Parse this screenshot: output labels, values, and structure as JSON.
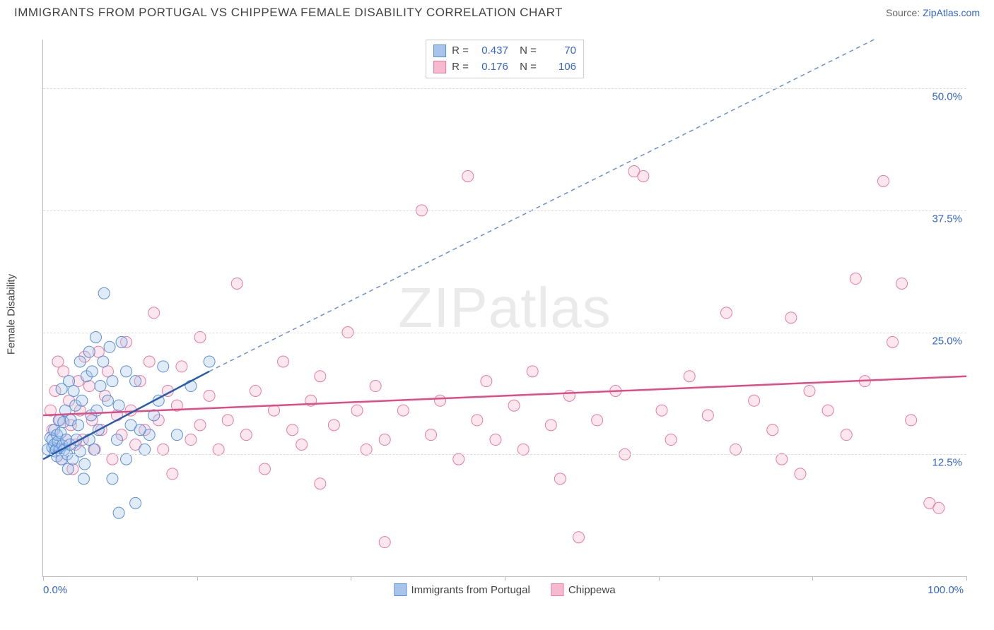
{
  "title": "IMMIGRANTS FROM PORTUGAL VS CHIPPEWA FEMALE DISABILITY CORRELATION CHART",
  "source_label": "Source:",
  "source_value": "ZipAtlas.com",
  "watermark": "ZIPatlas",
  "ylabel": "Female Disability",
  "chart": {
    "type": "scatter",
    "xlim": [
      0,
      100
    ],
    "ylim": [
      0,
      55
    ],
    "x_tick_positions": [
      0,
      16.67,
      33.33,
      50,
      66.67,
      83.33,
      100
    ],
    "x_label_min": "0.0%",
    "x_label_max": "100.0%",
    "y_grid": [
      {
        "value": 12.5,
        "label": "12.5%"
      },
      {
        "value": 25.0,
        "label": "25.0%"
      },
      {
        "value": 37.5,
        "label": "37.5%"
      },
      {
        "value": 50.0,
        "label": "50.0%"
      }
    ],
    "background_color": "#ffffff",
    "grid_color": "#dddddd",
    "axis_color": "#bbbbbb",
    "marker_radius": 8,
    "marker_fill_opacity": 0.35,
    "series": [
      {
        "name": "Immigrants from Portugal",
        "color_stroke": "#5b8fd6",
        "color_fill": "#a7c5ec",
        "trend_color": "#2a5caa",
        "trend_dash_color": "#6a8fd6",
        "R": "0.437",
        "N": "70",
        "trend_solid": {
          "x1": 0,
          "y1": 12.0,
          "x2": 18,
          "y2": 21.0
        },
        "trend_dash": {
          "x1": 18,
          "y1": 21.0,
          "x2": 90,
          "y2": 55.0
        },
        "points": [
          [
            0.5,
            13.0
          ],
          [
            0.8,
            14.2
          ],
          [
            1.0,
            13.2
          ],
          [
            1.0,
            14.0
          ],
          [
            1.2,
            13.5
          ],
          [
            1.2,
            15.0
          ],
          [
            1.3,
            12.8
          ],
          [
            1.4,
            13.0
          ],
          [
            1.5,
            14.5
          ],
          [
            1.5,
            12.3
          ],
          [
            1.6,
            13.8
          ],
          [
            1.7,
            16.0
          ],
          [
            1.8,
            13.0
          ],
          [
            1.9,
            14.7
          ],
          [
            2.0,
            12.0
          ],
          [
            2.0,
            19.2
          ],
          [
            2.1,
            13.4
          ],
          [
            2.2,
            15.8
          ],
          [
            2.3,
            13.0
          ],
          [
            2.4,
            17.0
          ],
          [
            2.5,
            14.0
          ],
          [
            2.6,
            12.5
          ],
          [
            2.7,
            11.0
          ],
          [
            2.8,
            20.0
          ],
          [
            2.9,
            13.5
          ],
          [
            3.0,
            16.0
          ],
          [
            3.2,
            12.0
          ],
          [
            3.3,
            19.0
          ],
          [
            3.5,
            17.5
          ],
          [
            3.6,
            14.0
          ],
          [
            3.8,
            15.5
          ],
          [
            4.0,
            22.0
          ],
          [
            4.0,
            12.8
          ],
          [
            4.2,
            18.0
          ],
          [
            4.4,
            10.0
          ],
          [
            4.5,
            11.5
          ],
          [
            4.7,
            20.5
          ],
          [
            5.0,
            23.0
          ],
          [
            5.0,
            14.0
          ],
          [
            5.2,
            16.5
          ],
          [
            5.3,
            21.0
          ],
          [
            5.5,
            13.0
          ],
          [
            5.7,
            24.5
          ],
          [
            5.8,
            17.0
          ],
          [
            6.0,
            15.0
          ],
          [
            6.2,
            19.5
          ],
          [
            6.5,
            22.0
          ],
          [
            6.6,
            29.0
          ],
          [
            7.0,
            18.0
          ],
          [
            7.2,
            23.5
          ],
          [
            7.5,
            20.0
          ],
          [
            7.5,
            10.0
          ],
          [
            8.0,
            14.0
          ],
          [
            8.2,
            6.5
          ],
          [
            8.2,
            17.5
          ],
          [
            8.5,
            24.0
          ],
          [
            9.0,
            21.0
          ],
          [
            9.0,
            12.0
          ],
          [
            9.5,
            15.5
          ],
          [
            10.0,
            7.5
          ],
          [
            10.0,
            20.0
          ],
          [
            10.5,
            15.0
          ],
          [
            11.0,
            13.0
          ],
          [
            11.5,
            14.5
          ],
          [
            12.0,
            16.5
          ],
          [
            12.5,
            18.0
          ],
          [
            13.0,
            21.5
          ],
          [
            14.5,
            14.5
          ],
          [
            16.0,
            19.5
          ],
          [
            18.0,
            22.0
          ]
        ]
      },
      {
        "name": "Chippewa",
        "color_stroke": "#e77ba0",
        "color_fill": "#f6b9cd",
        "trend_color": "#e04d86",
        "R": "0.176",
        "N": "106",
        "trend_solid": {
          "x1": 0,
          "y1": 16.5,
          "x2": 100,
          "y2": 20.5
        },
        "points": [
          [
            0.8,
            17.0
          ],
          [
            1.0,
            15.0
          ],
          [
            1.3,
            19.0
          ],
          [
            1.6,
            22.0
          ],
          [
            1.8,
            16.0
          ],
          [
            2.0,
            12.0
          ],
          [
            2.2,
            21.0
          ],
          [
            2.5,
            14.0
          ],
          [
            2.8,
            18.0
          ],
          [
            3.0,
            15.5
          ],
          [
            3.2,
            11.0
          ],
          [
            3.5,
            13.5
          ],
          [
            3.8,
            20.0
          ],
          [
            4.0,
            17.0
          ],
          [
            4.3,
            14.0
          ],
          [
            4.5,
            22.5
          ],
          [
            5.0,
            19.5
          ],
          [
            5.3,
            16.0
          ],
          [
            5.6,
            13.0
          ],
          [
            6.0,
            23.0
          ],
          [
            6.3,
            15.0
          ],
          [
            6.7,
            18.5
          ],
          [
            7.0,
            21.0
          ],
          [
            7.5,
            12.0
          ],
          [
            8.0,
            16.5
          ],
          [
            8.5,
            14.5
          ],
          [
            9.0,
            24.0
          ],
          [
            9.5,
            17.0
          ],
          [
            10.0,
            13.5
          ],
          [
            10.5,
            20.0
          ],
          [
            11.0,
            15.0
          ],
          [
            11.5,
            22.0
          ],
          [
            12.0,
            27.0
          ],
          [
            12.5,
            16.0
          ],
          [
            13.0,
            13.0
          ],
          [
            13.5,
            19.0
          ],
          [
            14.0,
            10.5
          ],
          [
            14.5,
            17.5
          ],
          [
            15.0,
            21.5
          ],
          [
            16.0,
            14.0
          ],
          [
            17.0,
            24.5
          ],
          [
            17.0,
            15.5
          ],
          [
            18.0,
            18.5
          ],
          [
            19.0,
            13.0
          ],
          [
            20.0,
            16.0
          ],
          [
            21.0,
            30.0
          ],
          [
            22.0,
            14.5
          ],
          [
            23.0,
            19.0
          ],
          [
            24.0,
            11.0
          ],
          [
            25.0,
            17.0
          ],
          [
            26.0,
            22.0
          ],
          [
            27.0,
            15.0
          ],
          [
            28.0,
            13.5
          ],
          [
            29.0,
            18.0
          ],
          [
            30.0,
            20.5
          ],
          [
            30.0,
            9.5
          ],
          [
            31.5,
            15.5
          ],
          [
            33.0,
            25.0
          ],
          [
            34.0,
            17.0
          ],
          [
            35.0,
            13.0
          ],
          [
            36.0,
            19.5
          ],
          [
            37.0,
            14.0
          ],
          [
            37.0,
            3.5
          ],
          [
            39.0,
            17.0
          ],
          [
            41.0,
            37.5
          ],
          [
            42.0,
            14.5
          ],
          [
            43.0,
            18.0
          ],
          [
            45.0,
            12.0
          ],
          [
            46.0,
            41.0
          ],
          [
            47.0,
            16.0
          ],
          [
            48.0,
            20.0
          ],
          [
            49.0,
            14.0
          ],
          [
            51.0,
            17.5
          ],
          [
            52.0,
            13.0
          ],
          [
            53.0,
            21.0
          ],
          [
            55.0,
            15.5
          ],
          [
            56.0,
            10.0
          ],
          [
            57.0,
            18.5
          ],
          [
            58.0,
            4.0
          ],
          [
            60.0,
            16.0
          ],
          [
            62.0,
            19.0
          ],
          [
            63.0,
            12.5
          ],
          [
            64.0,
            41.5
          ],
          [
            65.0,
            41.0
          ],
          [
            67.0,
            17.0
          ],
          [
            68.0,
            14.0
          ],
          [
            70.0,
            20.5
          ],
          [
            72.0,
            16.5
          ],
          [
            74.0,
            27.0
          ],
          [
            75.0,
            13.0
          ],
          [
            77.0,
            18.0
          ],
          [
            79.0,
            15.0
          ],
          [
            80.0,
            12.0
          ],
          [
            81.0,
            26.5
          ],
          [
            82.0,
            10.5
          ],
          [
            83.0,
            19.0
          ],
          [
            85.0,
            17.0
          ],
          [
            87.0,
            14.5
          ],
          [
            88.0,
            30.5
          ],
          [
            89.0,
            20.0
          ],
          [
            91.0,
            40.5
          ],
          [
            92.0,
            24.0
          ],
          [
            93.0,
            30.0
          ],
          [
            94.0,
            16.0
          ],
          [
            96.0,
            7.5
          ],
          [
            97.0,
            7.0
          ]
        ]
      }
    ]
  }
}
